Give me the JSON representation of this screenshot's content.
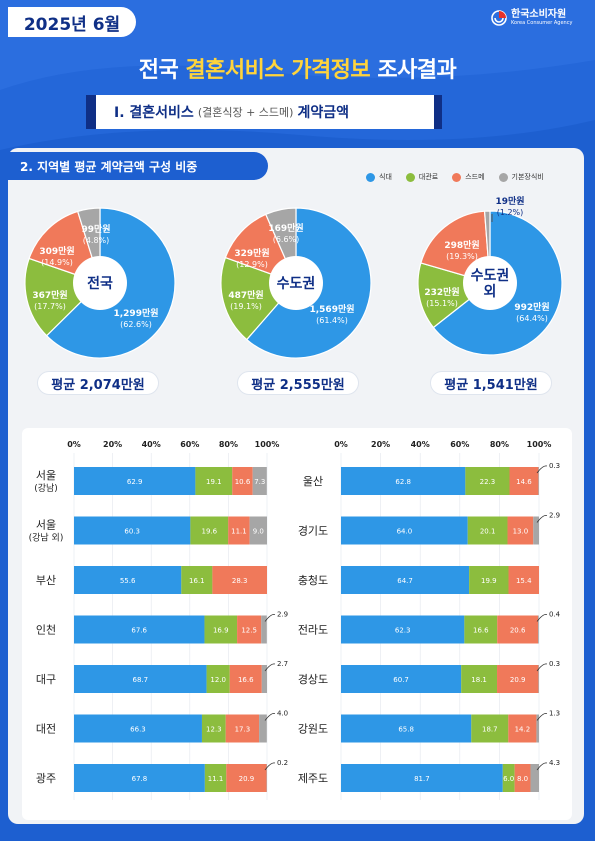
{
  "header": {
    "date": "2025년 6월",
    "org_name": "한국소비자원",
    "org_name_en": "Korea Consumer Agency",
    "title_part1": "전국 ",
    "title_highlight": "결혼서비스 가격정보",
    "title_part2": " 조사결과"
  },
  "section1": {
    "label": "Ⅰ. 결혼서비스",
    "sub": "(결혼식장 + 스드메)",
    "tail": "계약금액"
  },
  "section2": {
    "label": "2. 지역별 평균 계약금액 구성 비중"
  },
  "colors": {
    "식대": "#2e97e6",
    "대관료": "#8cbd3e",
    "스드메": "#f0795a",
    "기본장식비": "#a6a6a6"
  },
  "legend": [
    "식대",
    "대관료",
    "스드메",
    "기본장식비"
  ],
  "chart_data": [
    {
      "type": "pie",
      "center_label": "전국",
      "slices": [
        {
          "label": "식대",
          "amount": "1,299만원",
          "pct": 62.6,
          "pct_label": "(62.6%)"
        },
        {
          "label": "대관료",
          "amount": "367만원",
          "pct": 17.7,
          "pct_label": "(17.7%)"
        },
        {
          "label": "스드메",
          "amount": "309만원",
          "pct": 14.9,
          "pct_label": "(14.9%)"
        },
        {
          "label": "기본장식비",
          "amount": "99만원",
          "pct": 4.8,
          "pct_label": "(4.8%)"
        }
      ],
      "average": "평균 2,074만원"
    },
    {
      "type": "pie",
      "center_label": "수도권",
      "slices": [
        {
          "label": "식대",
          "amount": "1,569만원",
          "pct": 61.4,
          "pct_label": "(61.4%)"
        },
        {
          "label": "대관료",
          "amount": "487만원",
          "pct": 19.1,
          "pct_label": "(19.1%)"
        },
        {
          "label": "스드메",
          "amount": "329만원",
          "pct": 12.9,
          "pct_label": "(12.9%)"
        },
        {
          "label": "기본장식비",
          "amount": "169만원",
          "pct": 6.6,
          "pct_label": "(6.6%)"
        }
      ],
      "average": "평균 2,555만원"
    },
    {
      "type": "pie",
      "center_label": "수도권 외",
      "center_lines": [
        "수도권",
        "외"
      ],
      "slices": [
        {
          "label": "식대",
          "amount": "992만원",
          "pct": 64.4,
          "pct_label": "(64.4%)"
        },
        {
          "label": "대관료",
          "amount": "232만원",
          "pct": 15.1,
          "pct_label": "(15.1%)"
        },
        {
          "label": "스드메",
          "amount": "298만원",
          "pct": 19.3,
          "pct_label": "(19.3%)"
        },
        {
          "label": "기본장식비",
          "amount": "19만원",
          "pct": 1.2,
          "pct_label": "(1.2%)"
        }
      ],
      "average": "평균 1,541만원"
    },
    {
      "type": "bar",
      "orientation": "horizontal-stacked",
      "ticks": [
        "0%",
        "20%",
        "40%",
        "60%",
        "80%",
        "100%"
      ],
      "xlim": [
        0,
        100
      ],
      "rows": [
        {
          "lines": [
            "서울",
            "(강남)"
          ],
          "values": [
            62.9,
            19.1,
            10.6,
            7.3
          ],
          "labels": [
            "62.9",
            "19.1",
            "10.6",
            "7.3"
          ]
        },
        {
          "lines": [
            "서울",
            "(강남 외)"
          ],
          "values": [
            60.3,
            19.6,
            11.1,
            9.0
          ],
          "labels": [
            "60.3",
            "19.6",
            "11.1",
            "9.0"
          ]
        },
        {
          "lines": [
            "부산"
          ],
          "values": [
            55.6,
            16.1,
            28.3,
            0
          ],
          "labels": [
            "55.6",
            "16.1",
            "28.3",
            ""
          ]
        },
        {
          "lines": [
            "인천"
          ],
          "values": [
            67.6,
            16.9,
            12.5,
            2.9
          ],
          "labels": [
            "67.6",
            "16.9",
            "12.5",
            "2.9"
          ]
        },
        {
          "lines": [
            "대구"
          ],
          "values": [
            68.7,
            12.0,
            16.6,
            2.7
          ],
          "labels": [
            "68.7",
            "12.0",
            "16.6",
            "2.7"
          ]
        },
        {
          "lines": [
            "대전"
          ],
          "values": [
            66.3,
            12.3,
            17.3,
            4.0
          ],
          "labels": [
            "66.3",
            "12.3",
            "17.3",
            "4.0"
          ]
        },
        {
          "lines": [
            "광주"
          ],
          "values": [
            67.8,
            11.1,
            20.9,
            0.2
          ],
          "labels": [
            "67.8",
            "11.1",
            "20.9",
            "0.2"
          ]
        }
      ]
    },
    {
      "type": "bar",
      "orientation": "horizontal-stacked",
      "ticks": [
        "0%",
        "20%",
        "40%",
        "60%",
        "80%",
        "100%"
      ],
      "xlim": [
        0,
        100
      ],
      "rows": [
        {
          "lines": [
            "울산"
          ],
          "values": [
            62.8,
            22.3,
            14.6,
            0.3
          ],
          "labels": [
            "62.8",
            "22.3",
            "14.6",
            "0.3"
          ]
        },
        {
          "lines": [
            "경기도"
          ],
          "values": [
            64.0,
            20.1,
            13.0,
            2.9
          ],
          "labels": [
            "64.0",
            "20.1",
            "13.0",
            "2.9"
          ]
        },
        {
          "lines": [
            "충청도"
          ],
          "values": [
            64.7,
            19.9,
            15.4,
            0
          ],
          "labels": [
            "64.7",
            "19.9",
            "15.4",
            ""
          ]
        },
        {
          "lines": [
            "전라도"
          ],
          "values": [
            62.3,
            16.6,
            20.6,
            0.4
          ],
          "labels": [
            "62.3",
            "16.6",
            "20.6",
            "0.4"
          ]
        },
        {
          "lines": [
            "경상도"
          ],
          "values": [
            60.7,
            18.1,
            20.9,
            0.3
          ],
          "labels": [
            "60.7",
            "18.1",
            "20.9",
            "0.3"
          ]
        },
        {
          "lines": [
            "강원도"
          ],
          "values": [
            65.8,
            18.7,
            14.2,
            1.3
          ],
          "labels": [
            "65.8",
            "18.7",
            "14.2",
            "1.3"
          ]
        },
        {
          "lines": [
            "제주도"
          ],
          "values": [
            81.7,
            6.0,
            8.0,
            4.3
          ],
          "labels": [
            "81.7",
            "6.0",
            "8.0",
            "4.3"
          ]
        }
      ]
    }
  ]
}
